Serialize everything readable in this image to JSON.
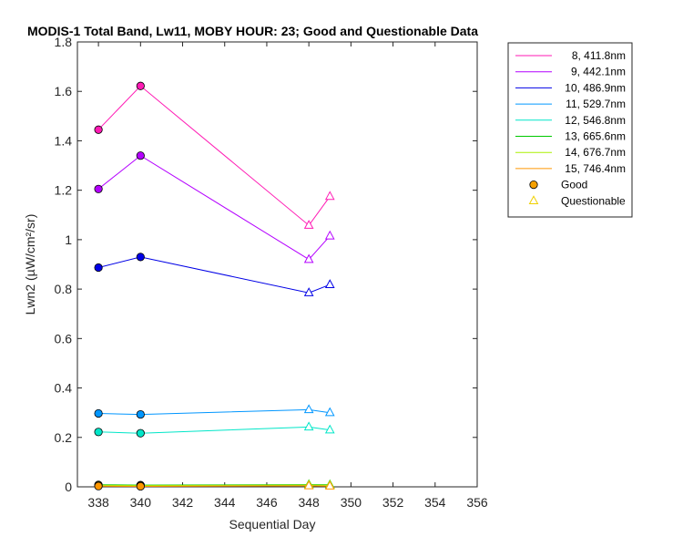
{
  "chart_data": {
    "type": "line",
    "title": "MODIS-1 Total Band, Lw11, MOBY HOUR: 23;  Good and Questionable Data",
    "xlabel": "Sequential Day",
    "ylabel": "Lwn2 (µW/cm²/sr)",
    "xlim": [
      337,
      356
    ],
    "ylim": [
      0,
      1.8
    ],
    "xticks": [
      "338",
      "340",
      "342",
      "344",
      "346",
      "348",
      "350",
      "352",
      "354",
      "356"
    ],
    "yticks": [
      "0",
      "0.2",
      "0.4",
      "0.6",
      "0.8",
      "1",
      "1.2",
      "1.4",
      "1.6",
      "1.8"
    ],
    "grid": false,
    "legend_position": "outside-top-right",
    "x": [
      338,
      340,
      348,
      349
    ],
    "quality": [
      "good",
      "good",
      "questionable",
      "questionable"
    ],
    "series": [
      {
        "name": "8, 411.8nm",
        "color": "#ff1ab4",
        "values": [
          1.445,
          1.622,
          1.058,
          1.175
        ]
      },
      {
        "name": "9, 442.1nm",
        "color": "#b400ff",
        "values": [
          1.205,
          1.34,
          0.92,
          1.015
        ]
      },
      {
        "name": "10, 486.9nm",
        "color": "#0000e6",
        "values": [
          0.887,
          0.93,
          0.785,
          0.818
        ]
      },
      {
        "name": "11, 529.7nm",
        "color": "#0096ff",
        "values": [
          0.297,
          0.293,
          0.312,
          0.3
        ]
      },
      {
        "name": "12, 546.8nm",
        "color": "#00e6c8",
        "values": [
          0.222,
          0.217,
          0.242,
          0.23
        ]
      },
      {
        "name": "13, 665.6nm",
        "color": "#00c800",
        "values": [
          0.008,
          0.007,
          0.009,
          0.008
        ]
      },
      {
        "name": "14, 676.7nm",
        "color": "#aaf000",
        "values": [
          0.006,
          0.005,
          0.007,
          0.006
        ]
      },
      {
        "name": "15, 746.4nm",
        "color": "#ff9600",
        "values": [
          0.003,
          0.002,
          0.004,
          0.003
        ]
      }
    ],
    "markers": [
      {
        "name": "Good",
        "shape": "circle",
        "color": "#f5a000"
      },
      {
        "name": "Questionable",
        "shape": "triangle",
        "color": "#f0d000"
      }
    ]
  }
}
